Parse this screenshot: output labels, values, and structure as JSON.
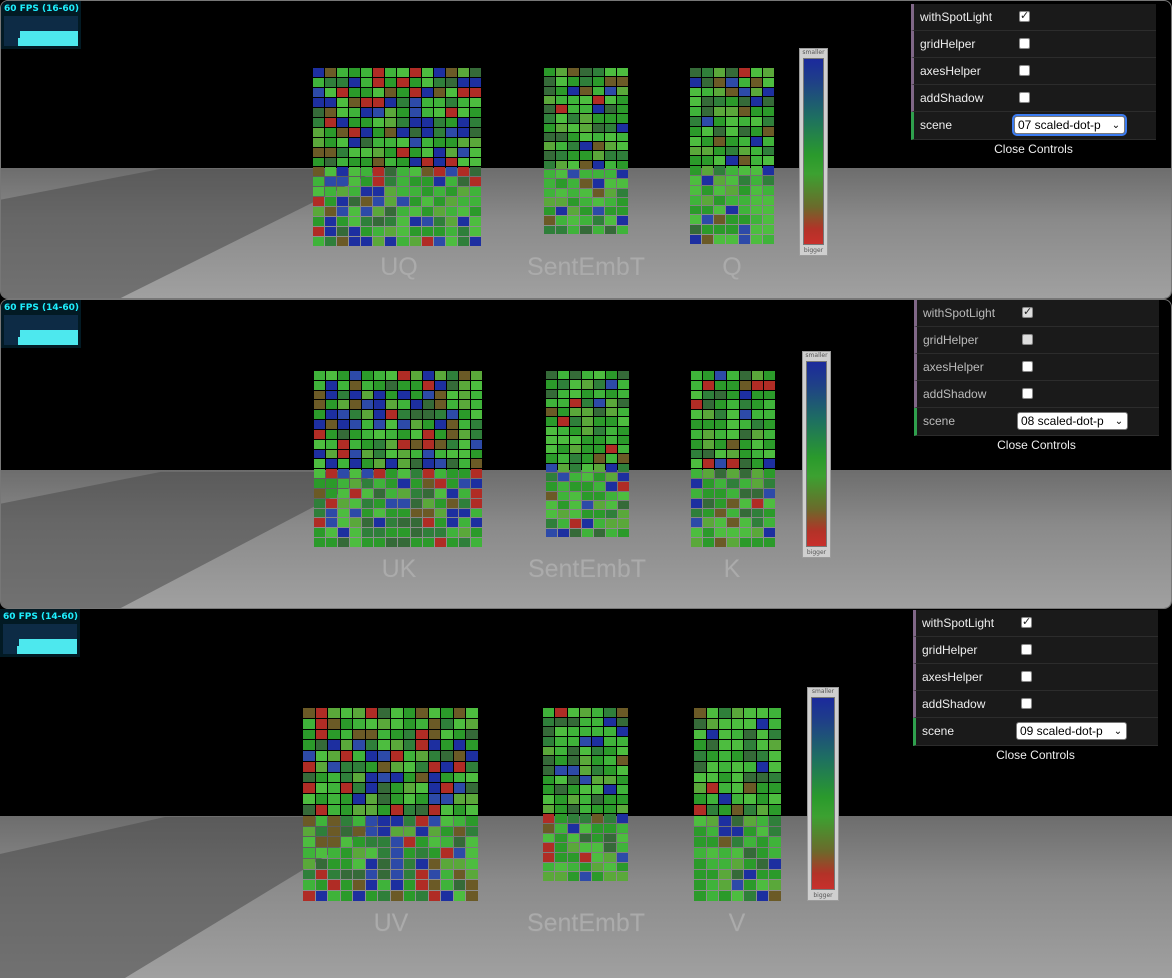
{
  "panels": [
    {
      "fps_label": "60 FPS (16-60)",
      "labels": [
        "UQ",
        "SentEmbT",
        "Q"
      ],
      "colorbar": {
        "top": "smaller",
        "bottom": "bigger"
      },
      "controls": {
        "withSpotLight": {
          "label": "withSpotLight",
          "checked": true
        },
        "gridHelper": {
          "label": "gridHelper",
          "checked": false
        },
        "axesHelper": {
          "label": "axesHelper",
          "checked": false
        },
        "addShadow": {
          "label": "addShadow",
          "checked": false
        },
        "scene": {
          "label": "scene",
          "value": "07 scaled-dot-p"
        },
        "close_label": "Close Controls"
      }
    },
    {
      "fps_label": "60 FPS (14-60)",
      "labels": [
        "UK",
        "SentEmbT",
        "K"
      ],
      "colorbar": {
        "top": "smaller",
        "bottom": "bigger"
      },
      "controls": {
        "withSpotLight": {
          "label": "withSpotLight",
          "checked": true
        },
        "gridHelper": {
          "label": "gridHelper",
          "checked": false
        },
        "axesHelper": {
          "label": "axesHelper",
          "checked": false
        },
        "addShadow": {
          "label": "addShadow",
          "checked": false
        },
        "scene": {
          "label": "scene",
          "value": "08 scaled-dot-p"
        },
        "close_label": "Close Controls"
      }
    },
    {
      "fps_label": "60 FPS (14-60)",
      "labels": [
        "UV",
        "SentEmbT",
        "V"
      ],
      "colorbar": {
        "top": "smaller",
        "bottom": "bigger"
      },
      "controls": {
        "withSpotLight": {
          "label": "withSpotLight",
          "checked": true
        },
        "gridHelper": {
          "label": "gridHelper",
          "checked": false
        },
        "axesHelper": {
          "label": "axesHelper",
          "checked": false
        },
        "addShadow": {
          "label": "addShadow",
          "checked": false
        },
        "scene": {
          "label": "scene",
          "value": "09 scaled-dot-p"
        },
        "close_label": "Close Controls"
      }
    }
  ]
}
